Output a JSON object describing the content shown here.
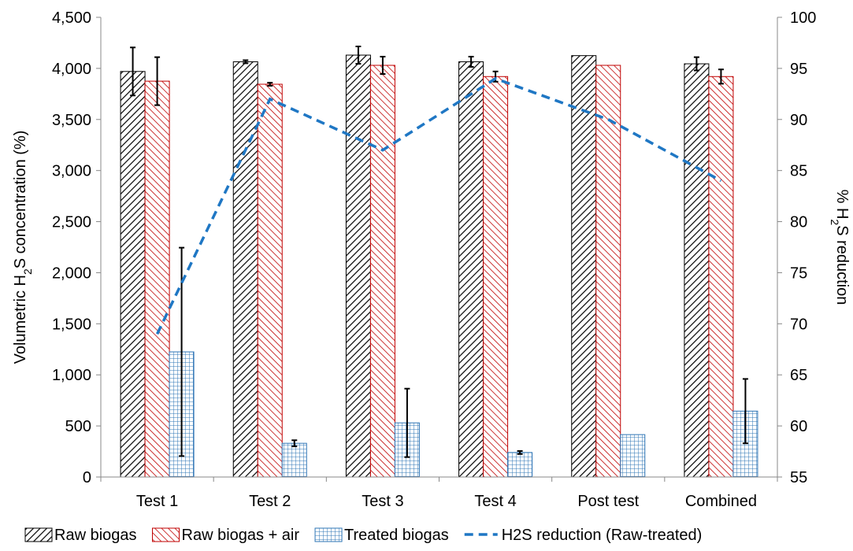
{
  "chart_data": {
    "type": "bar",
    "categories": [
      "Test 1",
      "Test 2",
      "Test 3",
      "Test 4",
      "Post test",
      "Combined"
    ],
    "series": [
      {
        "name": "Raw biogas",
        "values": [
          3970,
          4065,
          4130,
          4065,
          4125,
          4045
        ],
        "errors": [
          235,
          15,
          85,
          50,
          null,
          65
        ],
        "color": "#000000",
        "pattern": "diagonal-black"
      },
      {
        "name": "Raw biogas + air",
        "values": [
          3875,
          3845,
          4030,
          3920,
          4030,
          3920
        ],
        "errors": [
          235,
          15,
          85,
          50,
          null,
          70
        ],
        "color": "#c00000",
        "pattern": "diagonal-red"
      },
      {
        "name": "Treated biogas",
        "values": [
          1225,
          330,
          530,
          240,
          415,
          645
        ],
        "errors": [
          1020,
          30,
          335,
          15,
          null,
          315
        ],
        "color": "#2e75b6",
        "pattern": "grid-blue"
      }
    ],
    "line_series": {
      "name": "H2S reduction (Raw-treated)",
      "values": [
        69,
        92,
        87,
        94,
        90,
        84
      ],
      "color": "#1f77c4",
      "style": "dashed",
      "axis": "right"
    },
    "ylim": [
      0,
      4500
    ],
    "y_ticks": [
      "0",
      "500",
      "1,000",
      "1,500",
      "2,000",
      "2,500",
      "3,000",
      "3,500",
      "4,000",
      "4,500"
    ],
    "y2lim": [
      55,
      100
    ],
    "y2_ticks": [
      "55",
      "60",
      "65",
      "70",
      "75",
      "80",
      "85",
      "90",
      "95",
      "100"
    ],
    "ylabel": {
      "pre": "Volumetric H",
      "sub": "2",
      "post": "S concentration (%)"
    },
    "y2label": {
      "pre": "% H",
      "sub": "2",
      "post": "S reduction"
    },
    "legend_position": "bottom",
    "grid": false
  }
}
